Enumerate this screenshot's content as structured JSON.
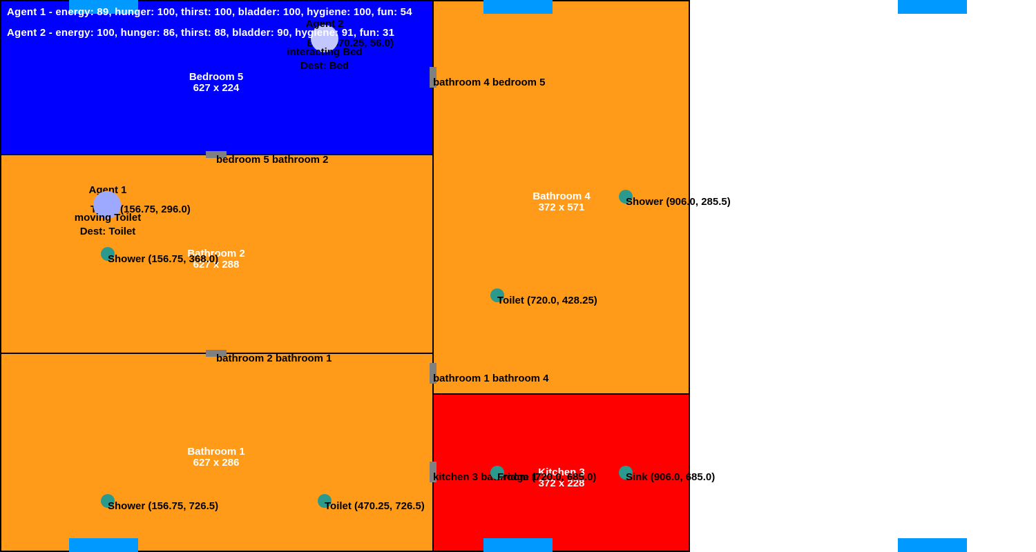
{
  "colors": {
    "bedroom": "#0000ff",
    "bathroom": "#ff9b18",
    "kitchen": "#ff0000",
    "door": "#808080",
    "object": "#2a9a8e",
    "spawn": "#0099ff",
    "agent1": "#9da8ff",
    "agent2": "#c2c8ff"
  },
  "status": {
    "agent1": "Agent 1 - energy: 89, hunger: 100, thirst: 100, bladder: 100, hygiene: 100, fun: 54",
    "agent2": "Agent 2 - energy: 100, hunger: 86, thirst: 88, bladder: 90, hygiene: 91, fun: 31"
  },
  "rooms": {
    "bedroom5": {
      "name": "Bedroom 5",
      "size": "627 x 224"
    },
    "bathroom2": {
      "name": "Bathroom 2",
      "size": "627 x 288"
    },
    "bathroom1": {
      "name": "Bathroom 1",
      "size": "627 x 286"
    },
    "bathroom4": {
      "name": "Bathroom 4",
      "size": "372 x 571"
    },
    "kitchen3": {
      "name": "Kitchen 3",
      "size": "372 x 228"
    }
  },
  "doors": {
    "bathroom4_bedroom5": "bathroom 4 bedroom 5",
    "bedroom5_bathroom2": "bedroom 5 bathroom 2",
    "bathroom2_bathroom1": "bathroom 2 bathroom 1",
    "bathroom1_bathroom4": "bathroom 1 bathroom 4",
    "kitchen3_bathroom": "kitchen 3 bathroom 1"
  },
  "objects": {
    "bed": "Bed (470.25, 56.0)",
    "toilet_b2": "Toilet (156.75, 296.0)",
    "shower_b2": "Shower (156.75, 368.0)",
    "shower_b4": "Shower (906.0, 285.5)",
    "toilet_b4": "Toilet (720.0, 428.25)",
    "shower_b1": "Shower (156.75, 726.5)",
    "toilet_b1": "Toilet (470.25, 726.5)",
    "fridge_k3": "Fridge (720.0, 685.0)",
    "sink_k3": "Sink (906.0, 685.0)"
  },
  "agents": {
    "agent1": {
      "name": "Agent 1",
      "state": "moving Toilet",
      "dest": "Dest: Toilet"
    },
    "agent2": {
      "name": "Agent 2",
      "state": "interacting Bed",
      "dest": "Dest: Bed"
    }
  }
}
